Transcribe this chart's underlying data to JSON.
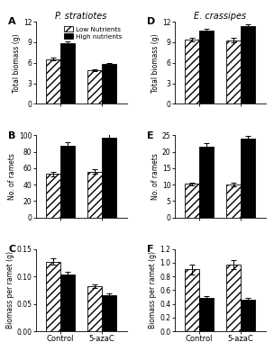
{
  "title_left": "P. stratiotes",
  "title_right": "E. crassipes",
  "legend_low": "Low Nutrients",
  "legend_high": "High nutrients",
  "categories": [
    "Control",
    "5-azaC"
  ],
  "A_low": [
    6.5,
    4.9
  ],
  "A_high": [
    8.9,
    5.8
  ],
  "A_low_err": [
    0.2,
    0.15
  ],
  "A_high_err": [
    0.25,
    0.2
  ],
  "A_ylim": [
    0,
    12
  ],
  "A_yticks": [
    0,
    3,
    6,
    9,
    12
  ],
  "A_ylabel": "Total biomass (g)",
  "B_low": [
    53,
    56
  ],
  "B_high": [
    87,
    97
  ],
  "B_low_err": [
    3,
    3
  ],
  "B_high_err": [
    4,
    4
  ],
  "B_ylim": [
    0,
    100
  ],
  "B_yticks": [
    0,
    20,
    40,
    60,
    80,
    100
  ],
  "B_ylabel": "No. of ramets",
  "C_low": [
    0.127,
    0.082
  ],
  "C_high": [
    0.104,
    0.065
  ],
  "C_low_err": [
    0.006,
    0.004
  ],
  "C_high_err": [
    0.005,
    0.004
  ],
  "C_ylim": [
    0.0,
    0.15
  ],
  "C_yticks": [
    0.0,
    0.05,
    0.1,
    0.15
  ],
  "C_ylabel": "Biomass per ramet (g)",
  "D_low": [
    9.4,
    9.3
  ],
  "D_high": [
    10.7,
    11.3
  ],
  "D_low_err": [
    0.3,
    0.3
  ],
  "D_high_err": [
    0.25,
    0.25
  ],
  "D_ylim": [
    0,
    12
  ],
  "D_yticks": [
    0,
    3,
    6,
    9,
    12
  ],
  "D_ylabel": "Total biomass (g)",
  "E_low": [
    10.2,
    10.0
  ],
  "E_high": [
    21.5,
    24.0
  ],
  "E_low_err": [
    0.5,
    0.5
  ],
  "E_high_err": [
    1.0,
    0.8
  ],
  "E_ylim": [
    0,
    25
  ],
  "E_yticks": [
    0,
    5,
    10,
    15,
    20,
    25
  ],
  "E_ylabel": "No. of ramets",
  "F_low": [
    0.9,
    0.97
  ],
  "F_high": [
    0.48,
    0.46
  ],
  "F_low_err": [
    0.07,
    0.06
  ],
  "F_high_err": [
    0.03,
    0.02
  ],
  "F_ylim": [
    0.0,
    1.2
  ],
  "F_yticks": [
    0.0,
    0.2,
    0.4,
    0.6,
    0.8,
    1.0,
    1.2
  ],
  "F_ylabel": "Biomass per ramet (g)",
  "bar_width": 0.35,
  "hatch_pattern": "////",
  "low_color": "white",
  "high_color": "black",
  "edge_color": "black",
  "figure_bg": "white",
  "capsize": 2
}
